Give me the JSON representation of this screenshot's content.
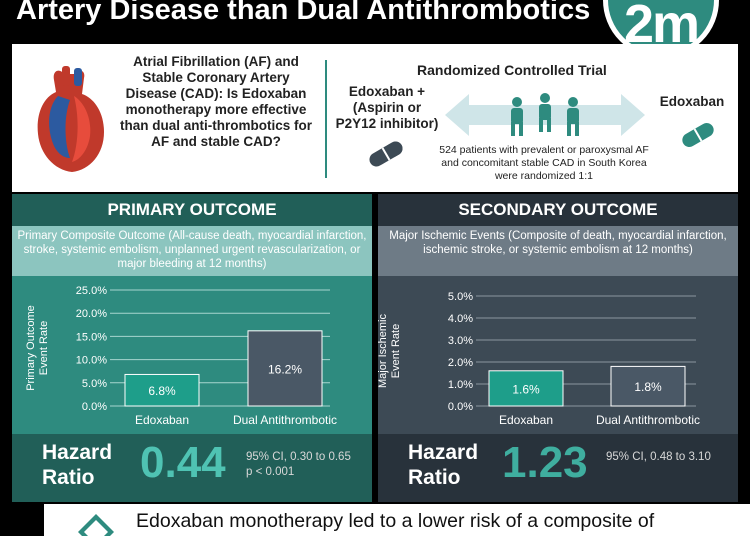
{
  "header": {
    "title": "Artery Disease than Dual Antithrombotics",
    "logo_text": "2m"
  },
  "question": {
    "text": "Atrial Fibrillation (AF) and Stable Coronary Artery Disease (CAD): Is Edoxaban monotherapy more effective than dual anti-thrombotics for AF and stable CAD?"
  },
  "trial": {
    "title": "Randomized Controlled Trial",
    "arm_a": "Edoxaban + (Aspirin or P2Y12 inhibitor)",
    "arm_b": "Edoxaban",
    "description": "524 patients with prevalent or paroxysmal AF and concomitant stable CAD in South Korea were randomized 1:1"
  },
  "primary": {
    "header": "PRIMARY OUTCOME",
    "description": "Primary Composite Outcome (All-cause death, myocardial infarction, stroke, systemic embolism, unplanned urgent revascularization, or major bleeding at 12 months)",
    "hr_label": "Hazard Ratio",
    "hr_value": "0.44",
    "ci": "95% CI, 0.30 to 0.65",
    "p": "p < 0.001"
  },
  "secondary": {
    "header": "SECONDARY OUTCOME",
    "description": "Major Ischemic Events (Composite of death, myocardial infarction, ischemic stroke, or systemic embolism at 12 months)",
    "hr_label": "Hazard Ratio",
    "hr_value": "1.23",
    "ci": "95% CI, 0.48 to 3.10"
  },
  "conclusion": {
    "text": "Edoxaban monotherapy led to a lower risk of a composite of"
  },
  "colors": {
    "teal": "#2e8b7f",
    "teal_dark": "#215f58",
    "slate": "#3d4a55",
    "bar_edoxaban": "#1e9e8a",
    "bar_dual": "#4a5866",
    "accent": "#4fc3b3"
  },
  "chart_data": [
    {
      "type": "bar",
      "categories": [
        "Edoxaban",
        "Dual Antithrombotic"
      ],
      "values": [
        6.8,
        16.2
      ],
      "value_labels": [
        "6.8%",
        "16.2%"
      ],
      "ylabel": "Primary Outcome Event Rate",
      "ylim": [
        0,
        25
      ],
      "yticks": [
        0,
        5,
        10,
        15,
        20,
        25
      ],
      "ytick_labels": [
        "0.0%",
        "5.0%",
        "10.0%",
        "15.0%",
        "20.0%",
        "25.0%"
      ],
      "grid": true
    },
    {
      "type": "bar",
      "categories": [
        "Edoxaban",
        "Dual Antithrombotic"
      ],
      "values": [
        1.6,
        1.8
      ],
      "value_labels": [
        "1.6%",
        "1.8%"
      ],
      "ylabel": "Major Ischemic Event Rate",
      "ylim": [
        0,
        5
      ],
      "yticks": [
        0,
        1,
        2,
        3,
        4,
        5
      ],
      "ytick_labels": [
        "0.0%",
        "1.0%",
        "2.0%",
        "3.0%",
        "4.0%",
        "5.0%"
      ],
      "grid": true
    }
  ]
}
